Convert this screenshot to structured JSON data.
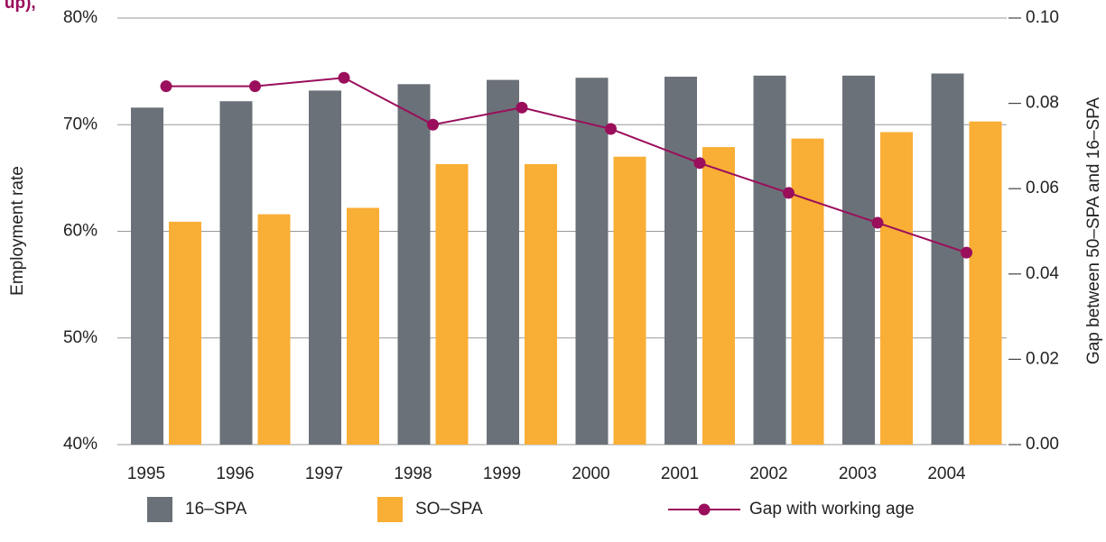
{
  "chart_data": {
    "type": "bar_line",
    "title": "g up),",
    "ylabel": "Employment rate",
    "y2label": "Gap between 50–SPA and 16–SPA",
    "categories": [
      "1995",
      "1996",
      "1997",
      "1998",
      "1999",
      "2000",
      "2001",
      "2002",
      "2003",
      "2004"
    ],
    "series": [
      {
        "name": "16–SPA",
        "type": "bar",
        "color": "#6b7178",
        "values": [
          71.6,
          72.2,
          73.2,
          73.8,
          74.2,
          74.4,
          74.5,
          74.6,
          74.6,
          74.8
        ]
      },
      {
        "name": "SO–SPA",
        "type": "bar",
        "color": "#f9ae35",
        "values": [
          60.9,
          61.6,
          62.2,
          66.3,
          66.3,
          67.0,
          67.9,
          68.7,
          69.3,
          70.3
        ]
      },
      {
        "name": "Gap with working age",
        "type": "line",
        "axis": "y2",
        "color": "#9a0e5c",
        "values": [
          0.084,
          0.084,
          0.086,
          0.075,
          0.079,
          0.074,
          0.066,
          0.059,
          0.052,
          0.045
        ]
      }
    ],
    "ylim": [
      40,
      80
    ],
    "yticks": [
      {
        "value": 40,
        "label": "40%"
      },
      {
        "value": 50,
        "label": "50%"
      },
      {
        "value": 60,
        "label": "60%"
      },
      {
        "value": 70,
        "label": "70%"
      },
      {
        "value": 80,
        "label": "80%"
      }
    ],
    "y2lim": [
      0,
      0.1
    ],
    "y2ticks": [
      {
        "value": 0,
        "label": "0.00"
      },
      {
        "value": 0.02,
        "label": "0.02"
      },
      {
        "value": 0.04,
        "label": "0.04"
      },
      {
        "value": 0.06,
        "label": "0.06"
      },
      {
        "value": 0.08,
        "label": "0.08"
      },
      {
        "value": 0.1,
        "label": "0.10"
      }
    ],
    "grid": true,
    "legend": "bottom"
  }
}
